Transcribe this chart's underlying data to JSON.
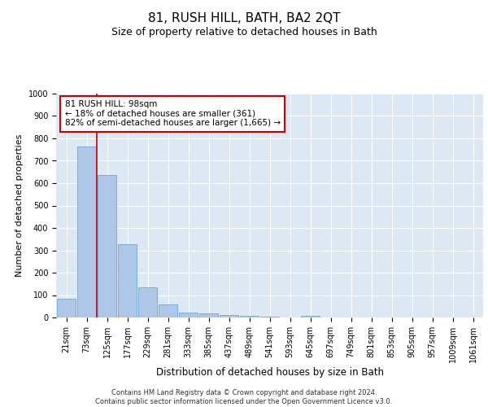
{
  "title": "81, RUSH HILL, BATH, BA2 2QT",
  "subtitle": "Size of property relative to detached houses in Bath",
  "xlabel": "Distribution of detached houses by size in Bath",
  "ylabel": "Number of detached properties",
  "bar_labels": [
    "21sqm",
    "73sqm",
    "125sqm",
    "177sqm",
    "229sqm",
    "281sqm",
    "333sqm",
    "385sqm",
    "437sqm",
    "489sqm",
    "541sqm",
    "593sqm",
    "645sqm",
    "697sqm",
    "749sqm",
    "801sqm",
    "853sqm",
    "905sqm",
    "957sqm",
    "1009sqm",
    "1061sqm"
  ],
  "bar_values": [
    85,
    765,
    638,
    328,
    135,
    57,
    22,
    18,
    12,
    8,
    5,
    1,
    8,
    0,
    0,
    0,
    0,
    0,
    0,
    0,
    0
  ],
  "bar_color": "#aec6e8",
  "bar_edge_color": "#5a9fd4",
  "background_color": "#dce9f5",
  "grid_color": "#ffffff",
  "annotation_box_text": "81 RUSH HILL: 98sqm\n← 18% of detached houses are smaller (361)\n82% of semi-detached houses are larger (1,665) →",
  "annotation_box_color": "#ffffff",
  "annotation_box_edge_color": "#cc0000",
  "vline_color": "#cc0000",
  "ylim": [
    0,
    1000
  ],
  "yticks": [
    0,
    100,
    200,
    300,
    400,
    500,
    600,
    700,
    800,
    900,
    1000
  ],
  "footer_text": "Contains HM Land Registry data © Crown copyright and database right 2024.\nContains public sector information licensed under the Open Government Licence v3.0.",
  "title_fontsize": 11,
  "subtitle_fontsize": 9,
  "xlabel_fontsize": 8.5,
  "ylabel_fontsize": 8,
  "tick_fontsize": 7,
  "annotation_fontsize": 7.5,
  "footer_fontsize": 6
}
